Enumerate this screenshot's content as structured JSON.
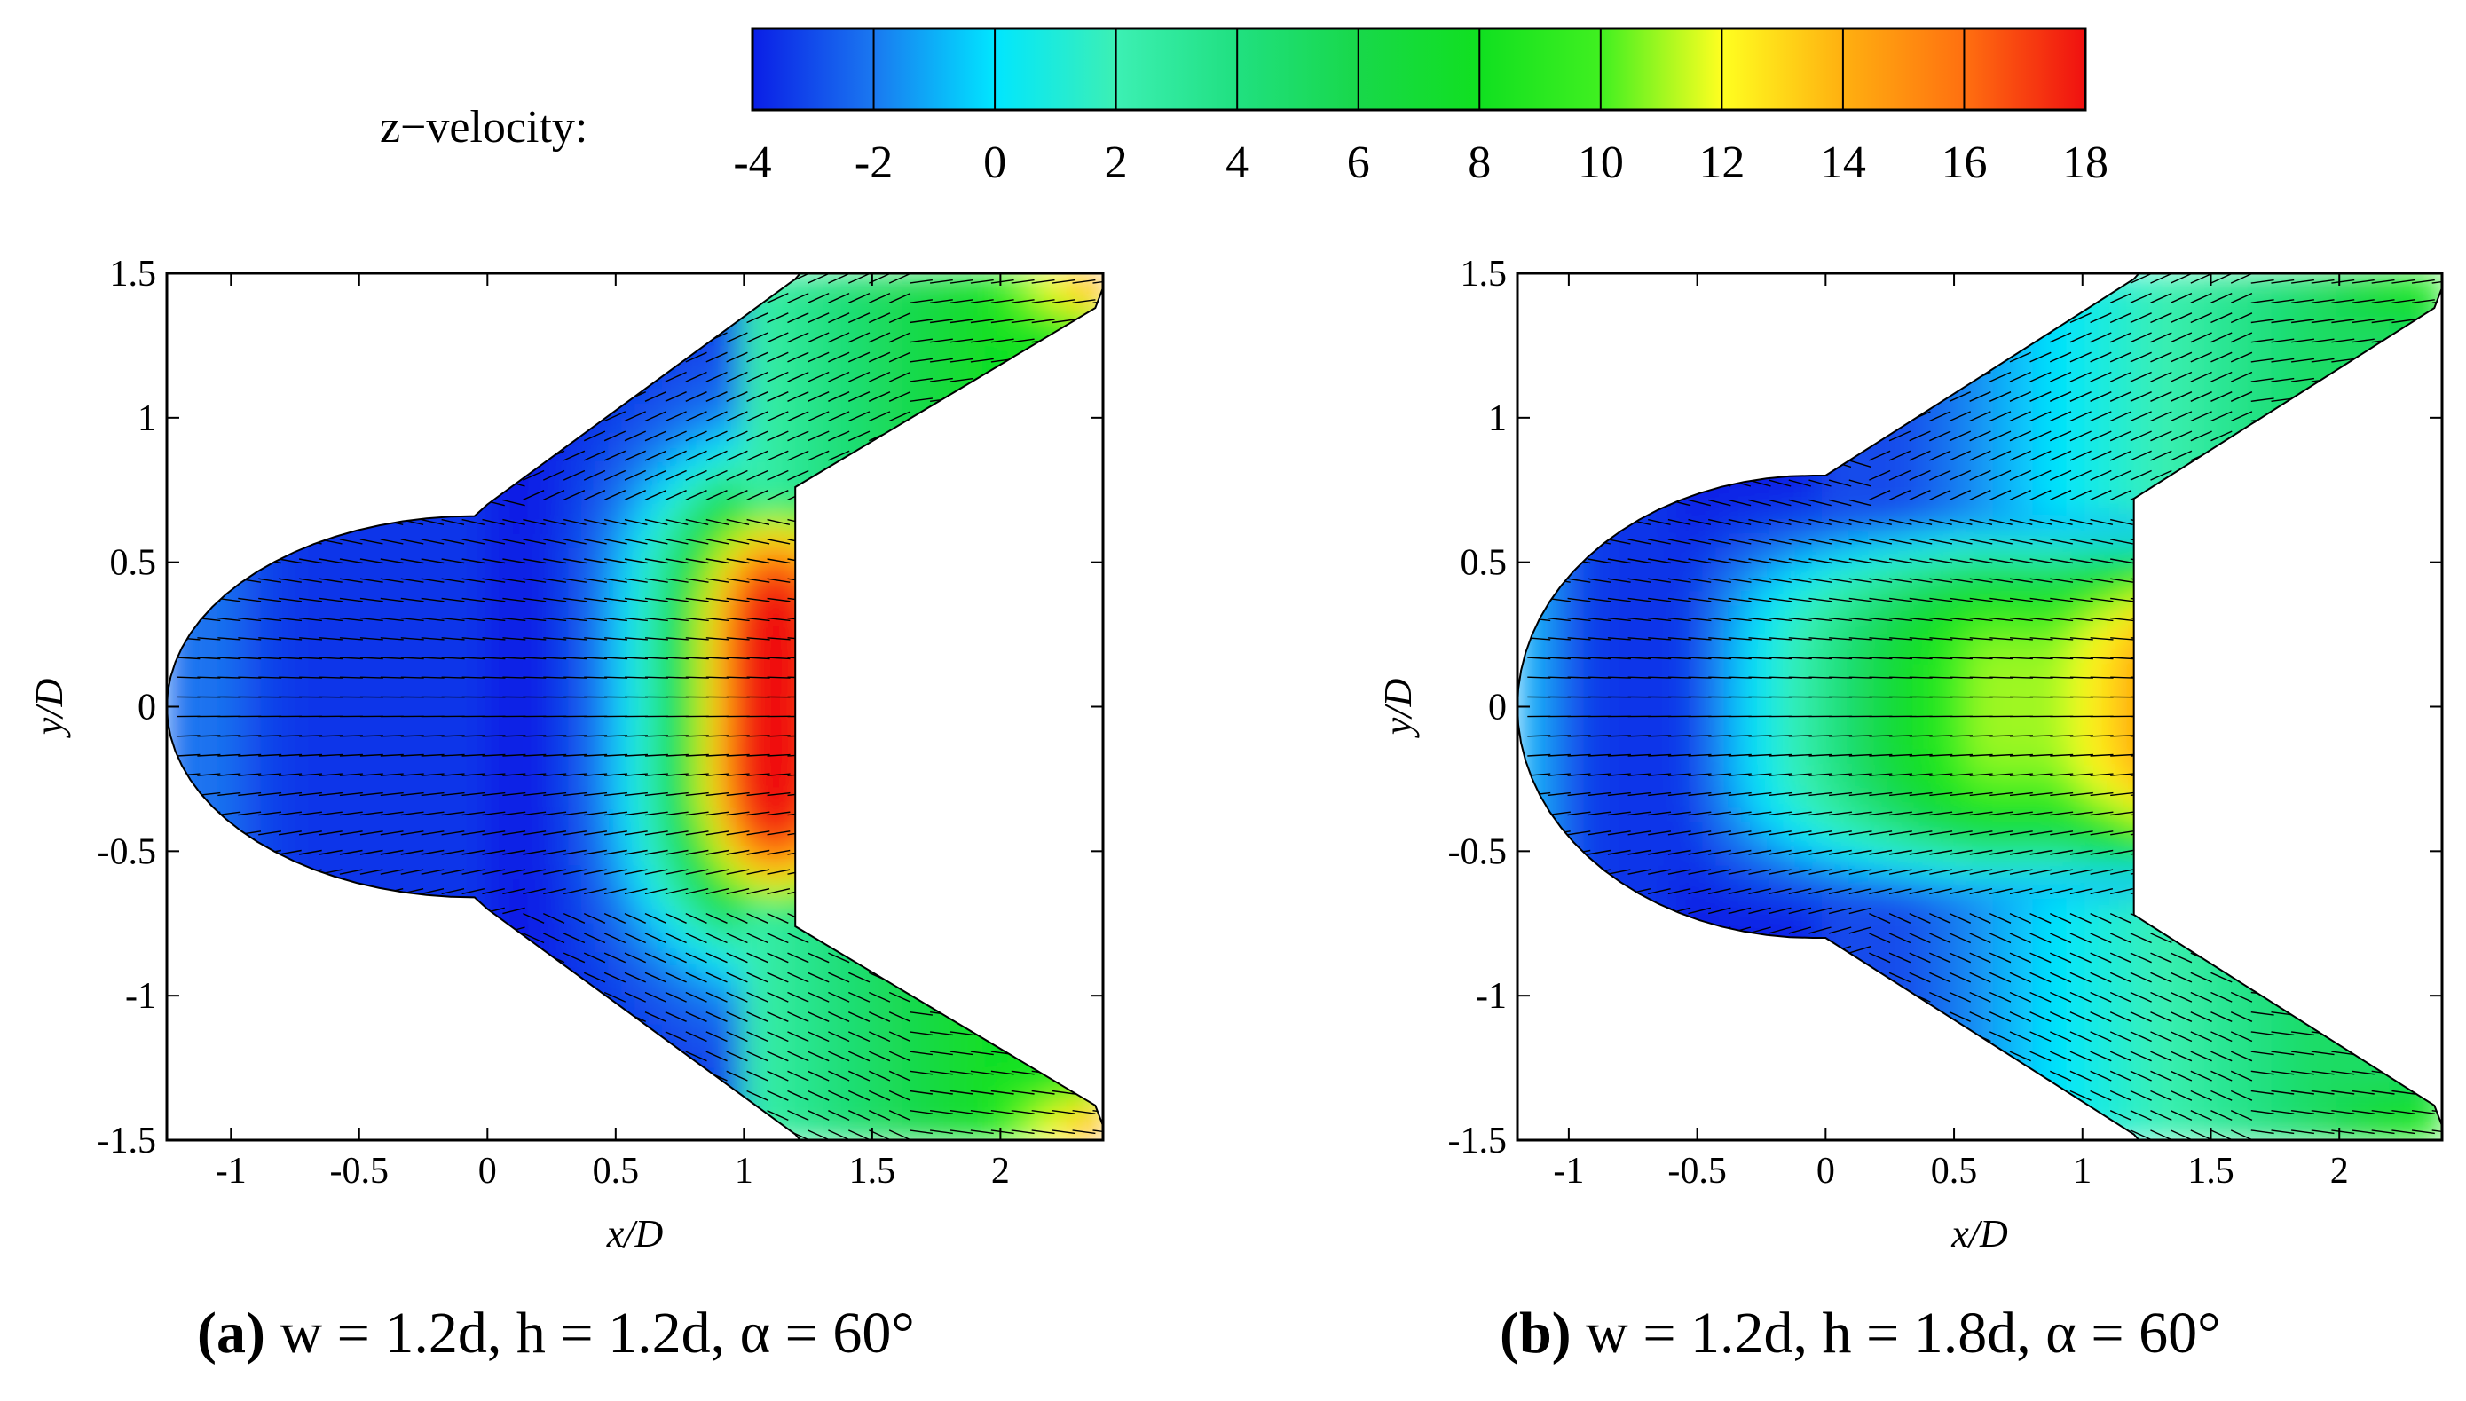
{
  "colorbar": {
    "label": "z−velocity:",
    "ticks": [
      "-4",
      "-2",
      "0",
      "2",
      "4",
      "6",
      "8",
      "10",
      "12",
      "14",
      "16",
      "18"
    ],
    "range": [
      -4,
      18
    ],
    "stops": [
      {
        "v": -4,
        "color": "#0a1ee6"
      },
      {
        "v": -2,
        "color": "#1a78f0"
      },
      {
        "v": 0,
        "color": "#00e6ff"
      },
      {
        "v": 2,
        "color": "#3cf0b4"
      },
      {
        "v": 4,
        "color": "#20e080"
      },
      {
        "v": 6,
        "color": "#18d84a"
      },
      {
        "v": 8,
        "color": "#10e020"
      },
      {
        "v": 10,
        "color": "#40f020"
      },
      {
        "v": 12,
        "color": "#ffff20"
      },
      {
        "v": 14,
        "color": "#ffb010"
      },
      {
        "v": 16,
        "color": "#ff7010"
      },
      {
        "v": 18,
        "color": "#f01010"
      }
    ]
  },
  "chart_data": [
    {
      "type": "heatmap",
      "subtype": "contour-vector",
      "panel": "a",
      "title": "",
      "xlabel": "x/D",
      "ylabel": "y/D",
      "xlim": [
        -1.25,
        2.4
      ],
      "ylim": [
        -1.5,
        1.5
      ],
      "xticks": [
        "-1",
        "-0.5",
        "0",
        "0.5",
        "1",
        "1.5",
        "2"
      ],
      "yticks": [
        "-1.5",
        "-1",
        "-0.5",
        "0",
        "0.5",
        "1",
        "1.5"
      ],
      "variable": "z-velocity",
      "max_velocity_region": "x/D 0.9 to 1.2, |y/D| < 0.6",
      "caption": {
        "label": "(a)",
        "text": " w = 1.2d, h = 1.2d, α = 60°"
      }
    },
    {
      "type": "heatmap",
      "subtype": "contour-vector",
      "panel": "b",
      "title": "",
      "xlabel": "x/D",
      "ylabel": "y/D",
      "xlim": [
        -1.2,
        2.4
      ],
      "ylim": [
        -1.5,
        1.5
      ],
      "xticks": [
        "-1",
        "-0.5",
        "0",
        "0.5",
        "1",
        "1.5",
        "2"
      ],
      "yticks": [
        "-1.5",
        "-1",
        "-0.5",
        "0",
        "0.5",
        "1",
        "1.5"
      ],
      "variable": "z-velocity",
      "max_velocity_region": "x/D 0.2 to 1.2, |y/D| < 0.4",
      "caption": {
        "label": "(b)",
        "text": " w = 1.2d, h = 1.8d, α = 60°"
      }
    }
  ]
}
